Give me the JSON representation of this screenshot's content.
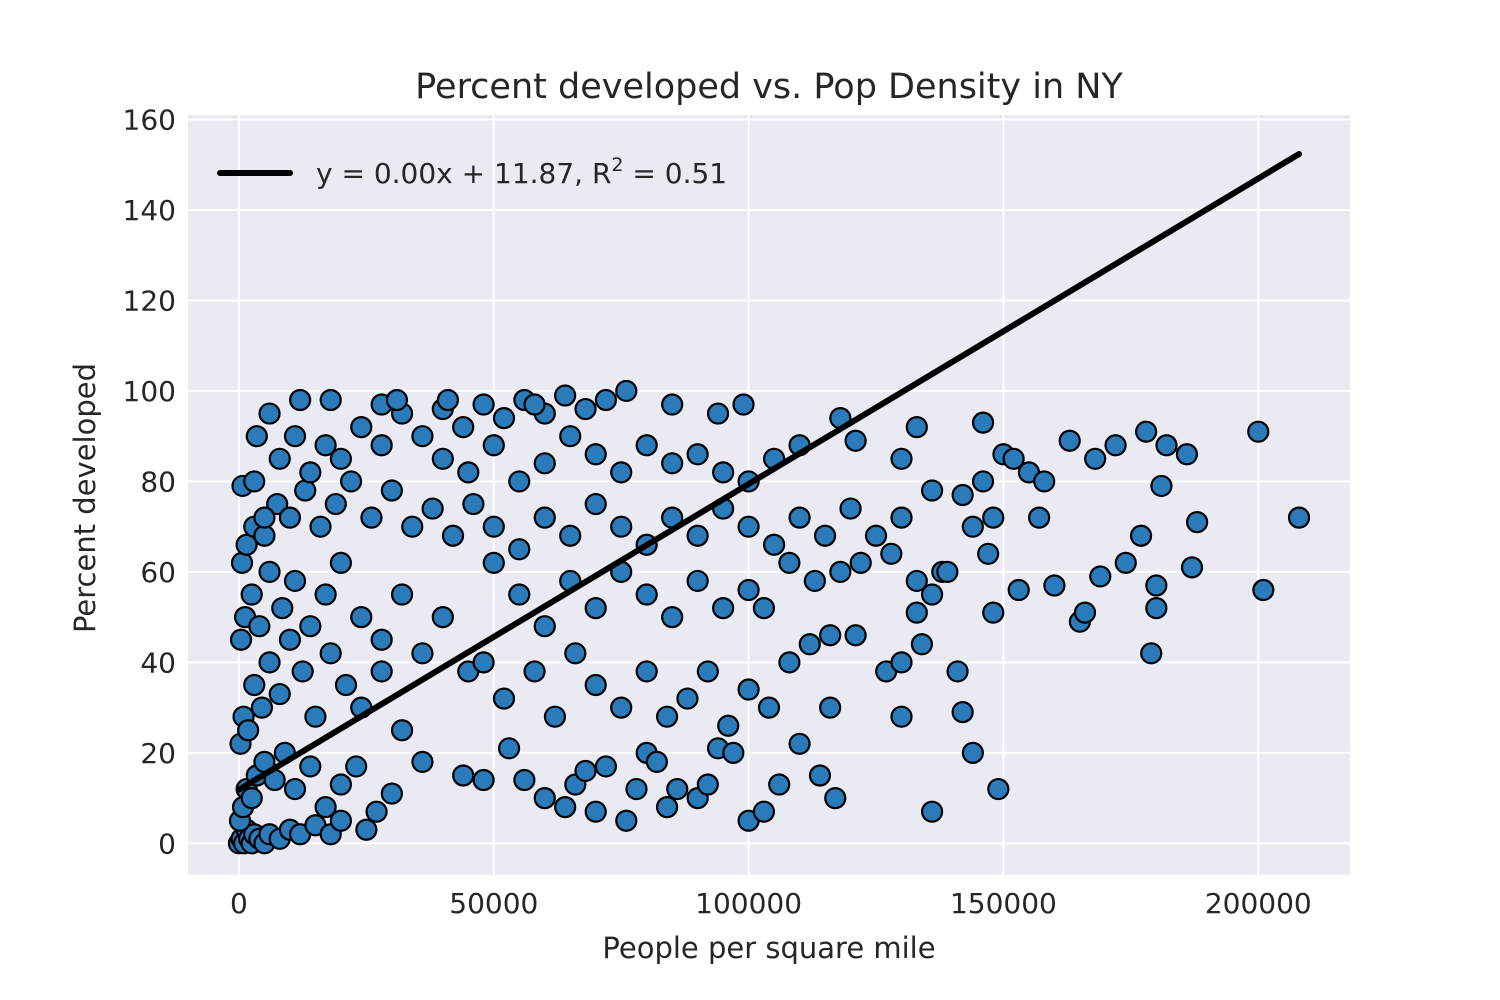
{
  "chart_data": {
    "type": "scatter",
    "title": "Percent developed vs. Pop Density in NY",
    "xlabel": "People per square mile",
    "ylabel": "Percent developed",
    "xlim": [
      -10000,
      218000
    ],
    "ylim": [
      -7,
      161
    ],
    "xticks": [
      0,
      50000,
      100000,
      150000,
      200000
    ],
    "yticks": [
      0,
      20,
      40,
      60,
      80,
      100,
      120,
      140,
      160
    ],
    "grid": true,
    "background": "#eaeaf2",
    "point_color": "#2b7bba",
    "point_edge_color": "#000000",
    "line_color": "#000000",
    "legend": {
      "placement": "top-left",
      "entry": {
        "pre": "y = 0.00x + 11.87, R",
        "sup": "2",
        "post": " = 0.51"
      }
    },
    "fit": {
      "slope": 0.0006755,
      "intercept": 11.87,
      "x_range": [
        0,
        208000
      ]
    },
    "series": [
      {
        "type": "scatter",
        "points": [
          [
            0,
            0
          ],
          [
            500,
            1
          ],
          [
            1000,
            0
          ],
          [
            1500,
            3
          ],
          [
            2000,
            1
          ],
          [
            2500,
            0
          ],
          [
            3000,
            2
          ],
          [
            4000,
            1
          ],
          [
            5000,
            0
          ],
          [
            6000,
            2
          ],
          [
            8000,
            1
          ],
          [
            10000,
            3
          ],
          [
            12000,
            2
          ],
          [
            15000,
            4
          ],
          [
            18000,
            2
          ],
          [
            20000,
            5
          ],
          [
            25000,
            3
          ],
          [
            200,
            5
          ],
          [
            800,
            8
          ],
          [
            1500,
            12
          ],
          [
            2500,
            10
          ],
          [
            3500,
            15
          ],
          [
            5000,
            18
          ],
          [
            7000,
            14
          ],
          [
            9000,
            20
          ],
          [
            11000,
            12
          ],
          [
            14000,
            17
          ],
          [
            17000,
            8
          ],
          [
            20000,
            13
          ],
          [
            23000,
            17
          ],
          [
            27000,
            7
          ],
          [
            30000,
            11
          ],
          [
            300,
            22
          ],
          [
            900,
            28
          ],
          [
            1800,
            25
          ],
          [
            3000,
            35
          ],
          [
            4500,
            30
          ],
          [
            6000,
            40
          ],
          [
            8000,
            33
          ],
          [
            10000,
            45
          ],
          [
            12500,
            38
          ],
          [
            15000,
            28
          ],
          [
            18000,
            42
          ],
          [
            21000,
            35
          ],
          [
            24000,
            30
          ],
          [
            28000,
            38
          ],
          [
            32000,
            25
          ],
          [
            36000,
            18
          ],
          [
            400,
            45
          ],
          [
            1200,
            50
          ],
          [
            2500,
            55
          ],
          [
            4000,
            48
          ],
          [
            6000,
            60
          ],
          [
            8500,
            52
          ],
          [
            11000,
            58
          ],
          [
            14000,
            48
          ],
          [
            17000,
            55
          ],
          [
            20000,
            62
          ],
          [
            24000,
            50
          ],
          [
            28000,
            45
          ],
          [
            32000,
            55
          ],
          [
            36000,
            42
          ],
          [
            40000,
            50
          ],
          [
            45000,
            38
          ],
          [
            600,
            62
          ],
          [
            1500,
            66
          ],
          [
            3000,
            70
          ],
          [
            5000,
            68
          ],
          [
            7500,
            75
          ],
          [
            10000,
            72
          ],
          [
            13000,
            78
          ],
          [
            16000,
            70
          ],
          [
            19000,
            75
          ],
          [
            22000,
            80
          ],
          [
            26000,
            72
          ],
          [
            30000,
            78
          ],
          [
            34000,
            70
          ],
          [
            38000,
            74
          ],
          [
            42000,
            68
          ],
          [
            46000,
            75
          ],
          [
            50000,
            62
          ],
          [
            700,
            79
          ],
          [
            3000,
            80
          ],
          [
            5000,
            72
          ],
          [
            8000,
            85
          ],
          [
            11000,
            90
          ],
          [
            14000,
            82
          ],
          [
            17000,
            88
          ],
          [
            20000,
            85
          ],
          [
            24000,
            92
          ],
          [
            28000,
            88
          ],
          [
            32000,
            95
          ],
          [
            36000,
            90
          ],
          [
            40000,
            96
          ],
          [
            44000,
            92
          ],
          [
            48000,
            97
          ],
          [
            52000,
            94
          ],
          [
            56000,
            98
          ],
          [
            60000,
            95
          ],
          [
            64000,
            99
          ],
          [
            68000,
            96
          ],
          [
            72000,
            98
          ],
          [
            76000,
            100
          ],
          [
            3500,
            90
          ],
          [
            6000,
            95
          ],
          [
            12000,
            98
          ],
          [
            18000,
            98
          ],
          [
            28000,
            97
          ],
          [
            31000,
            98
          ],
          [
            41000,
            98
          ],
          [
            58000,
            97
          ],
          [
            85000,
            97
          ],
          [
            94000,
            95
          ],
          [
            99000,
            97
          ],
          [
            40000,
            85
          ],
          [
            45000,
            82
          ],
          [
            50000,
            88
          ],
          [
            55000,
            80
          ],
          [
            60000,
            84
          ],
          [
            65000,
            90
          ],
          [
            70000,
            86
          ],
          [
            75000,
            82
          ],
          [
            80000,
            88
          ],
          [
            85000,
            84
          ],
          [
            90000,
            86
          ],
          [
            95000,
            82
          ],
          [
            100000,
            80
          ],
          [
            105000,
            85
          ],
          [
            110000,
            88
          ],
          [
            118000,
            94
          ],
          [
            121000,
            89
          ],
          [
            50000,
            70
          ],
          [
            55000,
            65
          ],
          [
            60000,
            72
          ],
          [
            65000,
            68
          ],
          [
            70000,
            75
          ],
          [
            75000,
            70
          ],
          [
            80000,
            66
          ],
          [
            85000,
            72
          ],
          [
            90000,
            68
          ],
          [
            95000,
            74
          ],
          [
            100000,
            70
          ],
          [
            105000,
            66
          ],
          [
            110000,
            72
          ],
          [
            115000,
            68
          ],
          [
            120000,
            74
          ],
          [
            125000,
            68
          ],
          [
            130000,
            72
          ],
          [
            55000,
            55
          ],
          [
            60000,
            48
          ],
          [
            65000,
            58
          ],
          [
            70000,
            52
          ],
          [
            75000,
            60
          ],
          [
            80000,
            55
          ],
          [
            85000,
            50
          ],
          [
            90000,
            58
          ],
          [
            95000,
            52
          ],
          [
            100000,
            56
          ],
          [
            103000,
            52
          ],
          [
            108000,
            62
          ],
          [
            113000,
            58
          ],
          [
            118000,
            60
          ],
          [
            122000,
            62
          ],
          [
            128000,
            64
          ],
          [
            133000,
            58
          ],
          [
            138000,
            60
          ],
          [
            48000,
            40
          ],
          [
            52000,
            32
          ],
          [
            58000,
            38
          ],
          [
            62000,
            28
          ],
          [
            66000,
            42
          ],
          [
            70000,
            35
          ],
          [
            75000,
            30
          ],
          [
            80000,
            38
          ],
          [
            84000,
            28
          ],
          [
            88000,
            32
          ],
          [
            92000,
            38
          ],
          [
            96000,
            26
          ],
          [
            100000,
            34
          ],
          [
            104000,
            30
          ],
          [
            108000,
            40
          ],
          [
            112000,
            44
          ],
          [
            116000,
            46
          ],
          [
            121000,
            46
          ],
          [
            127000,
            38
          ],
          [
            130000,
            40
          ],
          [
            44000,
            15
          ],
          [
            48000,
            14
          ],
          [
            53000,
            21
          ],
          [
            56000,
            14
          ],
          [
            60000,
            10
          ],
          [
            64000,
            8
          ],
          [
            66000,
            13
          ],
          [
            68000,
            16
          ],
          [
            70000,
            7
          ],
          [
            72000,
            17
          ],
          [
            76000,
            5
          ],
          [
            78000,
            12
          ],
          [
            80000,
            20
          ],
          [
            82000,
            18
          ],
          [
            84000,
            8
          ],
          [
            86000,
            12
          ],
          [
            90000,
            10
          ],
          [
            92000,
            13
          ],
          [
            94000,
            21
          ],
          [
            97000,
            20
          ],
          [
            100000,
            5
          ],
          [
            103000,
            7
          ],
          [
            106000,
            13
          ],
          [
            110000,
            22
          ],
          [
            114000,
            15
          ],
          [
            116000,
            30
          ],
          [
            117000,
            10
          ],
          [
            130000,
            28
          ],
          [
            130000,
            85
          ],
          [
            133000,
            92
          ],
          [
            136000,
            78
          ],
          [
            139000,
            60
          ],
          [
            142000,
            77
          ],
          [
            144000,
            70
          ],
          [
            146000,
            80
          ],
          [
            148000,
            72
          ],
          [
            150000,
            86
          ],
          [
            152000,
            85
          ],
          [
            155000,
            82
          ],
          [
            157000,
            72
          ],
          [
            158000,
            80
          ],
          [
            163000,
            89
          ],
          [
            168000,
            85
          ],
          [
            172000,
            88
          ],
          [
            178000,
            91
          ],
          [
            182000,
            88
          ],
          [
            186000,
            86
          ],
          [
            133000,
            51
          ],
          [
            136000,
            55
          ],
          [
            141000,
            38
          ],
          [
            142000,
            29
          ],
          [
            144000,
            20
          ],
          [
            146000,
            93
          ],
          [
            147000,
            64
          ],
          [
            148000,
            51
          ],
          [
            149000,
            12
          ],
          [
            136000,
            7
          ],
          [
            134000,
            44
          ],
          [
            153000,
            56
          ],
          [
            160000,
            57
          ],
          [
            165000,
            49
          ],
          [
            166000,
            51
          ],
          [
            169000,
            59
          ],
          [
            174000,
            62
          ],
          [
            177000,
            68
          ],
          [
            180000,
            52
          ],
          [
            180000,
            57
          ],
          [
            181000,
            79
          ],
          [
            179000,
            42
          ],
          [
            187000,
            61
          ],
          [
            188000,
            71
          ],
          [
            200000,
            91
          ],
          [
            201000,
            56
          ],
          [
            208000,
            72
          ]
        ]
      }
    ]
  }
}
